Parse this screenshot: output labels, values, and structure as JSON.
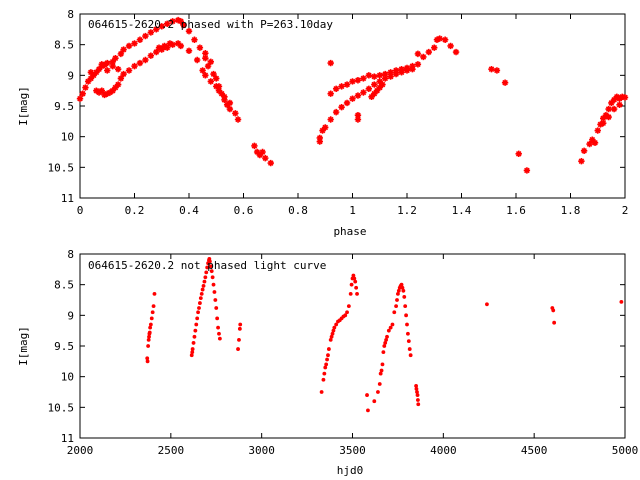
{
  "chart_data": [
    {
      "type": "scatter",
      "title": "064615-2620.2 phased with P=263.10day",
      "xlabel": "phase",
      "ylabel": "I[mag]",
      "xlim": [
        0,
        2
      ],
      "ylim": [
        11,
        8
      ],
      "y_inverted": true,
      "grid": false,
      "marker_color": "#ff0000",
      "xticks": [
        0,
        0.2,
        0.4,
        0.6,
        0.8,
        1,
        1.2,
        1.4,
        1.6,
        1.8,
        2
      ],
      "xtick_labels": [
        "0",
        "0.2",
        "0.4",
        "0.6",
        "0.8",
        "1",
        "1.2",
        "1.4",
        "1.6",
        "1.8",
        "2"
      ],
      "yticks": [
        8,
        8.5,
        9,
        9.5,
        10,
        10.5,
        11
      ],
      "ytick_labels": [
        "8",
        "8.5",
        "9",
        "9.5",
        "10",
        "10.5",
        "11"
      ],
      "points": [
        [
          0.0,
          9.38
        ],
        [
          0.01,
          9.3
        ],
        [
          0.02,
          9.2
        ],
        [
          0.03,
          9.1
        ],
        [
          0.04,
          9.05
        ],
        [
          0.05,
          9.0
        ],
        [
          0.06,
          8.95
        ],
        [
          0.07,
          8.9
        ],
        [
          0.08,
          8.85
        ],
        [
          0.09,
          8.83
        ],
        [
          0.1,
          8.8
        ],
        [
          0.12,
          8.78
        ],
        [
          0.13,
          8.72
        ],
        [
          0.15,
          8.65
        ],
        [
          0.16,
          8.58
        ],
        [
          0.18,
          8.52
        ],
        [
          0.2,
          8.48
        ],
        [
          0.22,
          8.42
        ],
        [
          0.24,
          8.36
        ],
        [
          0.26,
          8.3
        ],
        [
          0.28,
          8.25
        ],
        [
          0.3,
          8.2
        ],
        [
          0.32,
          8.16
        ],
        [
          0.34,
          8.12
        ],
        [
          0.36,
          8.1
        ],
        [
          0.37,
          8.12
        ],
        [
          0.38,
          8.18
        ],
        [
          0.4,
          8.28
        ],
        [
          0.42,
          8.42
        ],
        [
          0.44,
          8.55
        ],
        [
          0.46,
          8.72
        ],
        [
          0.47,
          8.85
        ],
        [
          0.49,
          8.98
        ],
        [
          0.5,
          9.05
        ],
        [
          0.51,
          9.18
        ],
        [
          0.52,
          9.3
        ],
        [
          0.53,
          9.4
        ],
        [
          0.54,
          9.48
        ],
        [
          0.55,
          9.55
        ],
        [
          0.57,
          9.62
        ],
        [
          0.58,
          9.72
        ],
        [
          0.06,
          9.25
        ],
        [
          0.07,
          9.28
        ],
        [
          0.08,
          9.25
        ],
        [
          0.09,
          9.32
        ],
        [
          0.1,
          9.3
        ],
        [
          0.11,
          9.28
        ],
        [
          0.12,
          9.25
        ],
        [
          0.13,
          9.2
        ],
        [
          0.14,
          9.15
        ],
        [
          0.15,
          9.05
        ],
        [
          0.16,
          8.98
        ],
        [
          0.18,
          8.92
        ],
        [
          0.2,
          8.85
        ],
        [
          0.22,
          8.8
        ],
        [
          0.24,
          8.75
        ],
        [
          0.26,
          8.68
        ],
        [
          0.28,
          8.62
        ],
        [
          0.3,
          8.58
        ],
        [
          0.32,
          8.55
        ],
        [
          0.34,
          8.5
        ],
        [
          0.36,
          8.48
        ],
        [
          0.37,
          8.52
        ],
        [
          0.04,
          8.95
        ],
        [
          0.08,
          8.82
        ],
        [
          0.1,
          8.92
        ],
        [
          0.12,
          8.85
        ],
        [
          0.14,
          8.9
        ],
        [
          0.4,
          8.6
        ],
        [
          0.43,
          8.75
        ],
        [
          0.45,
          8.92
        ],
        [
          0.46,
          9.0
        ],
        [
          0.48,
          9.1
        ],
        [
          0.5,
          9.18
        ],
        [
          0.51,
          9.25
        ],
        [
          0.53,
          9.35
        ],
        [
          0.55,
          9.45
        ],
        [
          0.29,
          8.55
        ],
        [
          0.31,
          8.52
        ],
        [
          0.33,
          8.48
        ],
        [
          0.46,
          8.64
        ],
        [
          0.48,
          8.78
        ],
        [
          0.64,
          10.15
        ],
        [
          0.65,
          10.25
        ],
        [
          0.66,
          10.3
        ],
        [
          0.67,
          10.25
        ],
        [
          0.68,
          10.35
        ],
        [
          0.7,
          10.43
        ],
        [
          0.88,
          10.08
        ],
        [
          0.88,
          10.02
        ],
        [
          0.89,
          9.9
        ],
        [
          0.9,
          9.85
        ],
        [
          0.92,
          9.72
        ],
        [
          0.94,
          9.6
        ],
        [
          0.96,
          9.52
        ],
        [
          0.98,
          9.45
        ],
        [
          1.0,
          9.38
        ],
        [
          1.02,
          9.33
        ],
        [
          1.04,
          9.28
        ],
        [
          1.06,
          9.22
        ],
        [
          1.08,
          9.15
        ],
        [
          1.1,
          9.1
        ],
        [
          1.12,
          9.05
        ],
        [
          1.14,
          9.02
        ],
        [
          1.16,
          8.98
        ],
        [
          1.18,
          8.95
        ],
        [
          1.2,
          8.92
        ],
        [
          1.22,
          8.9
        ],
        [
          0.92,
          9.3
        ],
        [
          0.94,
          9.22
        ],
        [
          0.96,
          9.18
        ],
        [
          0.98,
          9.15
        ],
        [
          1.0,
          9.1
        ],
        [
          1.02,
          9.08
        ],
        [
          1.04,
          9.05
        ],
        [
          1.06,
          9.0
        ],
        [
          1.08,
          9.02
        ],
        [
          1.1,
          9.0
        ],
        [
          1.12,
          8.98
        ],
        [
          1.14,
          8.95
        ],
        [
          1.16,
          8.92
        ],
        [
          1.18,
          8.9
        ],
        [
          1.2,
          8.88
        ],
        [
          1.22,
          8.85
        ],
        [
          1.24,
          8.82
        ],
        [
          1.26,
          8.7
        ],
        [
          1.28,
          8.62
        ],
        [
          1.3,
          8.55
        ],
        [
          1.31,
          8.42
        ],
        [
          1.32,
          8.4
        ],
        [
          1.07,
          9.35
        ],
        [
          1.08,
          9.3
        ],
        [
          1.09,
          9.25
        ],
        [
          1.1,
          9.2
        ],
        [
          1.11,
          9.15
        ],
        [
          0.92,
          8.8
        ],
        [
          1.02,
          9.65
        ],
        [
          1.02,
          9.72
        ],
        [
          1.24,
          8.65
        ],
        [
          1.34,
          8.42
        ],
        [
          1.36,
          8.52
        ],
        [
          1.38,
          8.62
        ],
        [
          1.51,
          8.9
        ],
        [
          1.53,
          8.92
        ],
        [
          1.56,
          9.12
        ],
        [
          1.61,
          10.28
        ],
        [
          1.64,
          10.55
        ],
        [
          1.84,
          10.4
        ],
        [
          1.85,
          10.23
        ],
        [
          1.87,
          10.12
        ],
        [
          1.88,
          10.05
        ],
        [
          1.89,
          10.1
        ],
        [
          1.9,
          9.9
        ],
        [
          1.91,
          9.8
        ],
        [
          1.92,
          9.7
        ],
        [
          1.93,
          9.65
        ],
        [
          1.94,
          9.55
        ],
        [
          1.95,
          9.45
        ],
        [
          1.96,
          9.4
        ],
        [
          1.97,
          9.35
        ],
        [
          1.98,
          9.38
        ],
        [
          1.99,
          9.35
        ],
        [
          2.0,
          9.36
        ],
        [
          1.92,
          9.78
        ],
        [
          1.94,
          9.68
        ],
        [
          1.96,
          9.55
        ],
        [
          1.98,
          9.48
        ]
      ]
    },
    {
      "type": "scatter",
      "title": "064615-2620.2 not phased light curve",
      "xlabel": "hjd0",
      "ylabel": "I[mag]",
      "xlim": [
        2000,
        5000
      ],
      "ylim": [
        11,
        8
      ],
      "y_inverted": true,
      "grid": false,
      "marker_color": "#ff0000",
      "xticks": [
        2000,
        2500,
        3000,
        3500,
        4000,
        4500,
        5000
      ],
      "xtick_labels": [
        "2000",
        "2500",
        "3000",
        "3500",
        "4000",
        "4500",
        "5000"
      ],
      "yticks": [
        8,
        8.5,
        9,
        9.5,
        10,
        10.5,
        11
      ],
      "ytick_labels": [
        "8",
        "8.5",
        "9",
        "9.5",
        "10",
        "10.5",
        "11"
      ],
      "points": [
        [
          2370,
          9.7
        ],
        [
          2372,
          9.75
        ],
        [
          2375,
          9.5
        ],
        [
          2378,
          9.4
        ],
        [
          2380,
          9.35
        ],
        [
          2382,
          9.3
        ],
        [
          2384,
          9.28
        ],
        [
          2386,
          9.2
        ],
        [
          2390,
          9.15
        ],
        [
          2395,
          9.05
        ],
        [
          2400,
          8.95
        ],
        [
          2405,
          8.85
        ],
        [
          2410,
          8.65
        ],
        [
          2615,
          9.65
        ],
        [
          2618,
          9.6
        ],
        [
          2620,
          9.55
        ],
        [
          2625,
          9.45
        ],
        [
          2630,
          9.35
        ],
        [
          2635,
          9.25
        ],
        [
          2640,
          9.15
        ],
        [
          2645,
          9.05
        ],
        [
          2650,
          8.95
        ],
        [
          2655,
          8.88
        ],
        [
          2660,
          8.8
        ],
        [
          2665,
          8.72
        ],
        [
          2670,
          8.65
        ],
        [
          2675,
          8.58
        ],
        [
          2680,
          8.52
        ],
        [
          2685,
          8.45
        ],
        [
          2690,
          8.38
        ],
        [
          2695,
          8.3
        ],
        [
          2700,
          8.22
        ],
        [
          2705,
          8.15
        ],
        [
          2710,
          8.1
        ],
        [
          2712,
          8.08
        ],
        [
          2715,
          8.12
        ],
        [
          2720,
          8.2
        ],
        [
          2725,
          8.28
        ],
        [
          2730,
          8.38
        ],
        [
          2735,
          8.5
        ],
        [
          2740,
          8.62
        ],
        [
          2745,
          8.75
        ],
        [
          2750,
          8.88
        ],
        [
          2755,
          9.05
        ],
        [
          2760,
          9.2
        ],
        [
          2765,
          9.3
        ],
        [
          2770,
          9.38
        ],
        [
          2870,
          9.55
        ],
        [
          2875,
          9.4
        ],
        [
          2880,
          9.22
        ],
        [
          2882,
          9.15
        ],
        [
          3330,
          10.25
        ],
        [
          3340,
          10.05
        ],
        [
          3345,
          9.95
        ],
        [
          3350,
          9.85
        ],
        [
          3355,
          9.8
        ],
        [
          3360,
          9.72
        ],
        [
          3365,
          9.65
        ],
        [
          3370,
          9.55
        ],
        [
          3380,
          9.4
        ],
        [
          3385,
          9.35
        ],
        [
          3390,
          9.3
        ],
        [
          3395,
          9.25
        ],
        [
          3400,
          9.2
        ],
        [
          3410,
          9.15
        ],
        [
          3420,
          9.1
        ],
        [
          3430,
          9.08
        ],
        [
          3440,
          9.05
        ],
        [
          3450,
          9.02
        ],
        [
          3460,
          9.0
        ],
        [
          3470,
          8.95
        ],
        [
          3480,
          8.85
        ],
        [
          3490,
          8.65
        ],
        [
          3495,
          8.5
        ],
        [
          3500,
          8.4
        ],
        [
          3505,
          8.35
        ],
        [
          3510,
          8.4
        ],
        [
          3515,
          8.45
        ],
        [
          3520,
          8.55
        ],
        [
          3525,
          8.65
        ],
        [
          3580,
          10.3
        ],
        [
          3585,
          10.55
        ],
        [
          3620,
          10.4
        ],
        [
          3640,
          10.25
        ],
        [
          3650,
          10.12
        ],
        [
          3655,
          9.95
        ],
        [
          3660,
          9.9
        ],
        [
          3665,
          9.8
        ],
        [
          3670,
          9.6
        ],
        [
          3675,
          9.5
        ],
        [
          3680,
          9.45
        ],
        [
          3685,
          9.4
        ],
        [
          3690,
          9.35
        ],
        [
          3700,
          9.25
        ],
        [
          3710,
          9.2
        ],
        [
          3720,
          9.15
        ],
        [
          3730,
          8.95
        ],
        [
          3740,
          8.85
        ],
        [
          3745,
          8.75
        ],
        [
          3750,
          8.65
        ],
        [
          3755,
          8.6
        ],
        [
          3760,
          8.55
        ],
        [
          3765,
          8.52
        ],
        [
          3770,
          8.5
        ],
        [
          3775,
          8.55
        ],
        [
          3780,
          8.6
        ],
        [
          3785,
          8.7
        ],
        [
          3790,
          8.85
        ],
        [
          3795,
          9.0
        ],
        [
          3800,
          9.15
        ],
        [
          3805,
          9.3
        ],
        [
          3810,
          9.42
        ],
        [
          3815,
          9.55
        ],
        [
          3820,
          9.65
        ],
        [
          3850,
          10.15
        ],
        [
          3852,
          10.2
        ],
        [
          3855,
          10.25
        ],
        [
          3858,
          10.3
        ],
        [
          3860,
          10.38
        ],
        [
          3862,
          10.45
        ],
        [
          4240,
          8.82
        ],
        [
          4600,
          8.88
        ],
        [
          4605,
          8.92
        ],
        [
          4610,
          9.12
        ],
        [
          4980,
          8.78
        ]
      ]
    }
  ]
}
